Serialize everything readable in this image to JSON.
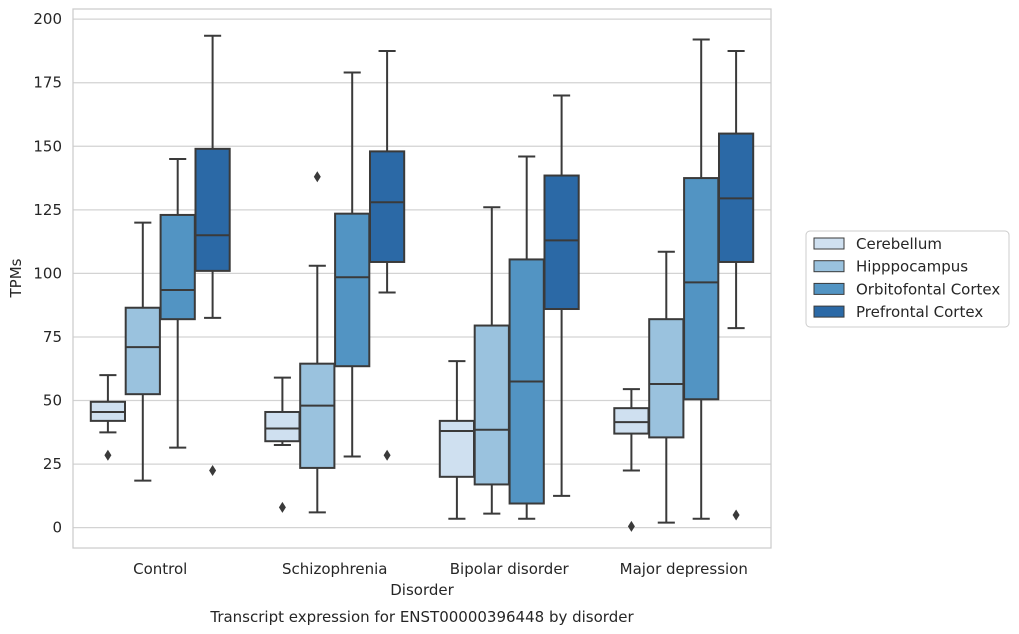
{
  "figure_caption": "Transcript expression for ENST00000396448 by disorder",
  "chart_data": {
    "type": "boxplot",
    "xlabel": "Disorder",
    "ylabel": "TPMs",
    "ylim": [
      -8,
      204
    ],
    "yticks": [
      0,
      25,
      50,
      75,
      100,
      125,
      150,
      175,
      200
    ],
    "grid": "horizontal",
    "legend_position": "right",
    "categories": [
      "Control",
      "Schizophrenia",
      "Bipolar disorder",
      "Major depression"
    ],
    "series": [
      {
        "name": "Cerebellum",
        "color": "#cfe0f0",
        "boxes": [
          {
            "whislo": 37.5,
            "q1": 42,
            "med": 45.5,
            "q3": 49.5,
            "whishi": 60,
            "fliers": [
              28.5
            ]
          },
          {
            "whislo": 32.5,
            "q1": 34,
            "med": 39,
            "q3": 45.5,
            "whishi": 59,
            "fliers": [
              8
            ]
          },
          {
            "whislo": 3.5,
            "q1": 20,
            "med": 38,
            "q3": 42,
            "whishi": 65.5,
            "fliers": []
          },
          {
            "whislo": 22.5,
            "q1": 37,
            "med": 41.5,
            "q3": 47,
            "whishi": 54.5,
            "fliers": [
              0.5
            ]
          }
        ]
      },
      {
        "name": "Hipppocampus",
        "color": "#9ac2de",
        "boxes": [
          {
            "whislo": 18.5,
            "q1": 52.5,
            "med": 71,
            "q3": 86.5,
            "whishi": 120,
            "fliers": []
          },
          {
            "whislo": 6,
            "q1": 23.5,
            "med": 48,
            "q3": 64.5,
            "whishi": 103,
            "fliers": [
              138
            ]
          },
          {
            "whislo": 5.5,
            "q1": 17,
            "med": 38.5,
            "q3": 79.5,
            "whishi": 126,
            "fliers": []
          },
          {
            "whislo": 2,
            "q1": 35.5,
            "med": 56.5,
            "q3": 82,
            "whishi": 108.5,
            "fliers": []
          }
        ]
      },
      {
        "name": "Orbitofontal Cortex",
        "color": "#5294c3",
        "boxes": [
          {
            "whislo": 31.5,
            "q1": 82,
            "med": 93.5,
            "q3": 123,
            "whishi": 145,
            "fliers": []
          },
          {
            "whislo": 28,
            "q1": 63.5,
            "med": 98.5,
            "q3": 123.5,
            "whishi": 179,
            "fliers": []
          },
          {
            "whislo": 3.5,
            "q1": 9.5,
            "med": 57.5,
            "q3": 105.5,
            "whishi": 146,
            "fliers": []
          },
          {
            "whislo": 3.5,
            "q1": 50.5,
            "med": 96.5,
            "q3": 137.5,
            "whishi": 192,
            "fliers": []
          }
        ]
      },
      {
        "name": "Prefrontal Cortex",
        "color": "#2b69a6",
        "boxes": [
          {
            "whislo": 82.5,
            "q1": 101,
            "med": 115,
            "q3": 149,
            "whishi": 193.5,
            "fliers": [
              22.5
            ]
          },
          {
            "whislo": 92.5,
            "q1": 104.5,
            "med": 128,
            "q3": 148,
            "whishi": 187.5,
            "fliers": [
              28.5
            ]
          },
          {
            "whislo": 12.5,
            "q1": 86,
            "med": 113,
            "q3": 138.5,
            "whishi": 170,
            "fliers": []
          },
          {
            "whislo": 78.5,
            "q1": 104.5,
            "med": 129.5,
            "q3": 155,
            "whishi": 187.5,
            "fliers": [
              5
            ]
          }
        ]
      }
    ]
  }
}
